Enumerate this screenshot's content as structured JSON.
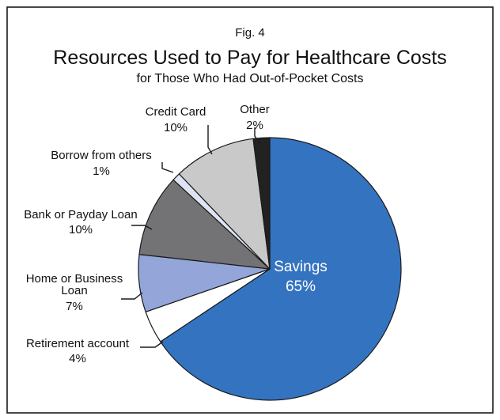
{
  "chart_data": {
    "type": "pie",
    "figure_label": "Fig. 4",
    "title": "Resources Used to Pay for Healthcare Costs",
    "subtitle": "for Those Who Had Out-of-Pocket Costs",
    "slices": [
      {
        "label": "Savings",
        "value": 65,
        "value_label": "65%",
        "color": "#3473c0"
      },
      {
        "label": "Retirement account",
        "value": 4,
        "value_label": "4%",
        "color": "#ffffff"
      },
      {
        "label_lines": [
          "Home or Business",
          "Loan"
        ],
        "value": 7,
        "value_label": "7%",
        "color": "#94a6d9"
      },
      {
        "label": "Bank or Payday Loan",
        "value": 10,
        "value_label": "10%",
        "color": "#737375"
      },
      {
        "label": "Borrow from others",
        "value": 1,
        "value_label": "1%",
        "color": "#dde4f4"
      },
      {
        "label": "Credit Card",
        "value": 10,
        "value_label": "10%",
        "color": "#c9c9c9"
      },
      {
        "label": "Other",
        "value": 2,
        "value_label": "2%",
        "color": "#222222"
      }
    ],
    "start": "12 o'clock",
    "direction": "clockwise"
  }
}
